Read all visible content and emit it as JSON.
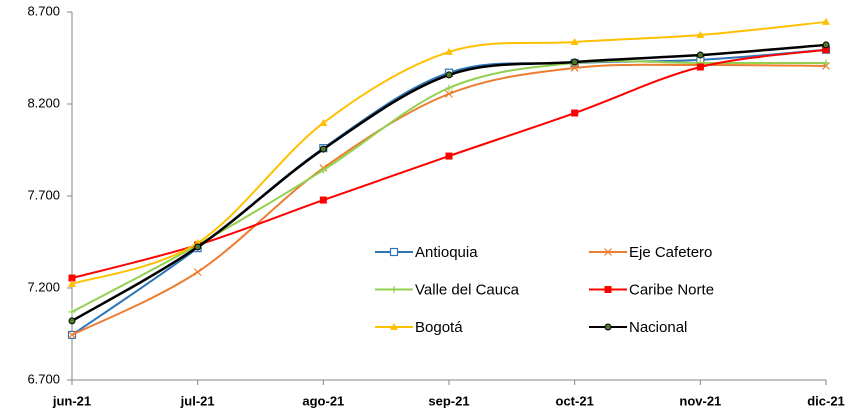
{
  "chart_data": {
    "type": "line",
    "categories": [
      "jun-21",
      "jul-21",
      "ago-21",
      "sep-21",
      "oct-21",
      "nov-21",
      "dic-21"
    ],
    "series": [
      {
        "name": "Antioquia",
        "color": "#2e75b6",
        "marker": "square-open",
        "values": [
          6945,
          7417,
          7960,
          8370,
          8423,
          8440,
          8495
        ]
      },
      {
        "name": "Eje Cafetero",
        "color": "#ed7d31",
        "marker": "x",
        "values": [
          6945,
          7287,
          7852,
          8255,
          8396,
          8412,
          8407
        ]
      },
      {
        "name": "Valle del Cauca",
        "color": "#92d050",
        "marker": "plus",
        "values": [
          7070,
          7434,
          7841,
          8287,
          8423,
          8423,
          8423
        ]
      },
      {
        "name": "Caribe Norte",
        "color": "#ff0000",
        "marker": "square",
        "values": [
          7254,
          7434,
          7678,
          7917,
          8151,
          8401,
          8495
        ]
      },
      {
        "name": "Bogotá",
        "color": "#ffc000",
        "marker": "triangle",
        "values": [
          7222,
          7445,
          8097,
          8483,
          8537,
          8575,
          8646
        ]
      },
      {
        "name": "Nacional",
        "color": "#000000",
        "marker": "circle",
        "values": [
          7021,
          7423,
          7955,
          8358,
          8428,
          8466,
          8521
        ]
      }
    ],
    "ylim": [
      6700,
      8700
    ],
    "yticks": [
      {
        "value": 6700,
        "label": "6.700"
      },
      {
        "value": 7200,
        "label": "7.200"
      },
      {
        "value": 7700,
        "label": "7.700"
      },
      {
        "value": 8200,
        "label": "8.200"
      },
      {
        "value": 8700,
        "label": "8.700"
      }
    ],
    "smooth": true
  }
}
